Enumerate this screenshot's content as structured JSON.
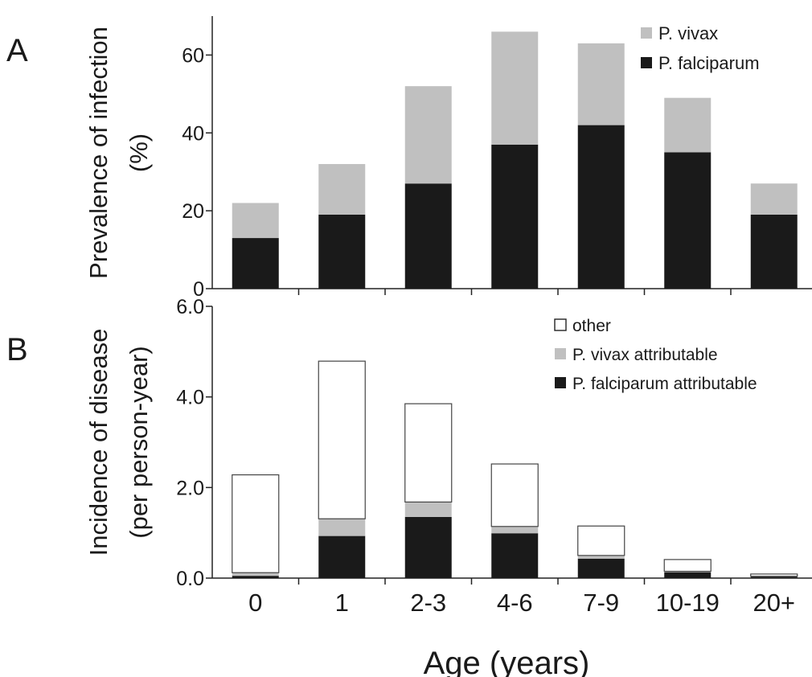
{
  "chart_data": [
    {
      "panel_label": "A",
      "type": "bar",
      "stacked": true,
      "categories": [
        "0",
        "1",
        "2-3",
        "4-6",
        "7-9",
        "10-19",
        "20+"
      ],
      "xlabel": "Age (years)",
      "ylabel": [
        "Prevalence of infection",
        "(%)"
      ],
      "ylim": [
        0,
        70
      ],
      "yticks": [
        "0",
        "20",
        "40",
        "60"
      ],
      "grid": false,
      "legend_position": "top-right",
      "series": [
        {
          "name": "P. falciparum",
          "color": "#1a1a1a",
          "values": [
            13,
            19,
            27,
            37,
            42,
            35,
            19
          ]
        },
        {
          "name": "P. vivax",
          "color": "#c0c0c0",
          "values": [
            9,
            13,
            25,
            29,
            21,
            14,
            8
          ]
        }
      ],
      "legend": [
        {
          "name": "P. vivax",
          "color": "#c0c0c0"
        },
        {
          "name": "P. falciparum",
          "color": "#1a1a1a"
        }
      ]
    },
    {
      "panel_label": "B",
      "type": "bar",
      "stacked": true,
      "categories": [
        "0",
        "1",
        "2-3",
        "4-6",
        "7-9",
        "10-19",
        "20+"
      ],
      "xlabel": "Age (years)",
      "ylabel": [
        "Incidence of disease",
        "(per person-year)"
      ],
      "ylim": [
        0,
        6.0
      ],
      "yticks": [
        "0.0",
        "2.0",
        "4.0",
        "6.0"
      ],
      "grid": false,
      "legend_position": "top-right",
      "series": [
        {
          "name": "P. falciparum attributable",
          "color": "#1a1a1a",
          "values": [
            0.05,
            0.93,
            1.35,
            0.99,
            0.43,
            0.13,
            0.03
          ]
        },
        {
          "name": "P. vivax attributable",
          "color": "#c0c0c0",
          "values": [
            0.07,
            0.38,
            0.33,
            0.15,
            0.07,
            0.02,
            0.01
          ]
        },
        {
          "name": "other",
          "color": "#ffffff",
          "values": [
            2.16,
            3.48,
            2.17,
            1.38,
            0.65,
            0.26,
            0.05
          ]
        }
      ],
      "legend": [
        {
          "name": "other",
          "color": "#ffffff"
        },
        {
          "name": "P. vivax attributable",
          "color": "#c0c0c0"
        },
        {
          "name": "P. falciparum attributable",
          "color": "#1a1a1a"
        }
      ]
    }
  ]
}
